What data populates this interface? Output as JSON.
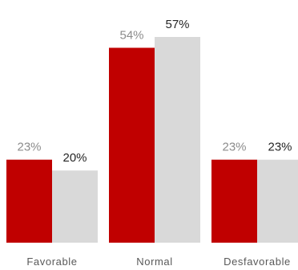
{
  "chart_data": {
    "type": "bar",
    "categories": [
      "Favorable",
      "Normal",
      "Desfavorable"
    ],
    "series": [
      {
        "values": [
          23,
          54,
          23
        ],
        "labels": [
          "23%",
          "54%",
          "23%"
        ],
        "color": "#C00000",
        "label_color": "#8C8C8C"
      },
      {
        "values": [
          20,
          57,
          23
        ],
        "labels": [
          "20%",
          "57%",
          "23%"
        ],
        "color": "#D9D9D9",
        "label_color": "#262626"
      }
    ],
    "ylim": [
      0,
      57
    ],
    "title": "",
    "xlabel": "",
    "ylabel": "",
    "grid": false,
    "legend": "none"
  }
}
